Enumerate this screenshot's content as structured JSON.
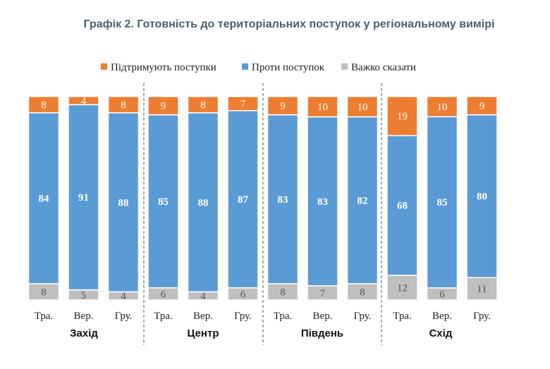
{
  "chart_data": {
    "type": "bar",
    "stacked": true,
    "title": "Графік 2. Готовність до територіальних поступок у регіональному вимірі",
    "legend_position": "top",
    "groups": [
      "Захід",
      "Центр",
      "Південь",
      "Схід"
    ],
    "categories": [
      "Тра.",
      "Вер.",
      "Гру.",
      "Тра.",
      "Вер.",
      "Гру.",
      "Тра.",
      "Вер.",
      "Гру.",
      "Тра.",
      "Вер.",
      "Гру."
    ],
    "series": [
      {
        "name": "Важко сказати",
        "color": "#bfbfbf",
        "values": [
          8,
          5,
          4,
          6,
          4,
          6,
          8,
          7,
          8,
          12,
          6,
          11
        ]
      },
      {
        "name": "Проти поступок",
        "color": "#5b9bd5",
        "values": [
          84,
          91,
          88,
          85,
          88,
          87,
          83,
          83,
          82,
          68,
          85,
          80
        ]
      },
      {
        "name": "Підтримують поступки",
        "color": "#ed7d31",
        "values": [
          8,
          4,
          8,
          9,
          8,
          7,
          9,
          10,
          10,
          19,
          10,
          9
        ]
      }
    ],
    "legend_order": [
      "Підтримують поступки",
      "Проти поступок",
      "Важко сказати"
    ],
    "ylim": [
      0,
      100
    ],
    "grid": false
  }
}
